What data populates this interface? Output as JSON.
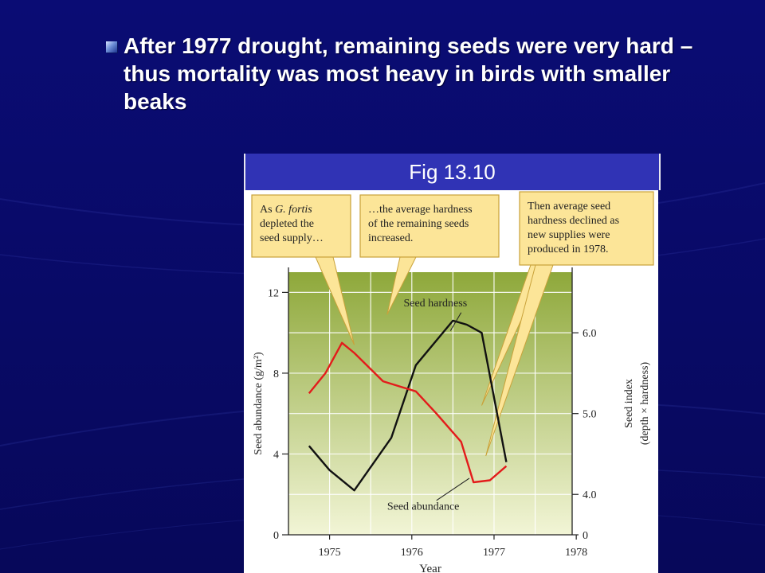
{
  "slide": {
    "bullet_text": "After 1977 drought,  remaining seeds were very hard – thus mortality was most heavy in birds with smaller beaks",
    "figure_title": "Fig 13.10"
  },
  "colors": {
    "background": "#0b0c6e",
    "figure_title_bar": "#3033b5",
    "callout_fill": "#fce598",
    "callout_border": "#c9a23a",
    "plot_fill_top": "#8ea83a",
    "plot_fill_bottom": "#f2f5d6",
    "seed_abundance": "#e31b1b",
    "seed_hardness": "#111111"
  },
  "callouts": [
    {
      "lines": [
        "As G. fortis",
        "depleted the",
        "seed supply…"
      ]
    },
    {
      "lines": [
        "…the average hardness",
        "of the remaining seeds",
        "increased."
      ]
    },
    {
      "lines": [
        "Then average seed",
        "hardness declined as",
        "new supplies were",
        "produced in 1978."
      ]
    }
  ],
  "chart_data": {
    "type": "line",
    "xlabel": "Year",
    "x_ticks": [
      "1975",
      "1976",
      "1977",
      "1978"
    ],
    "xlim": [
      1974.75,
      1978.2
    ],
    "y_left": {
      "label": "Seed abundance (g/m²)",
      "ticks": [
        "0",
        "4",
        "8",
        "12"
      ],
      "lim": [
        0,
        13
      ]
    },
    "y_right": {
      "label_lines": [
        "Seed index",
        "(depth × hardness)"
      ],
      "ticks": [
        {
          "label": "0",
          "left_value": 0
        },
        {
          "label": "4.0",
          "left_value": 2
        },
        {
          "label": "5.0",
          "left_value": 6
        },
        {
          "label": "6.0",
          "left_value": 10
        }
      ]
    },
    "grid": true,
    "series": [
      {
        "name": "Seed hardness",
        "axis": "right",
        "x": [
          1975.0,
          1975.25,
          1975.55,
          1976.0,
          1976.3,
          1976.75,
          1976.92,
          1977.1,
          1977.4
        ],
        "y": [
          4.6,
          4.3,
          4.05,
          4.7,
          5.6,
          6.15,
          6.1,
          6.0,
          4.4
        ]
      },
      {
        "name": "Seed abundance",
        "axis": "left",
        "x": [
          1975.0,
          1975.2,
          1975.4,
          1975.55,
          1975.9,
          1976.3,
          1976.55,
          1976.85,
          1977.0,
          1977.2,
          1977.4
        ],
        "y": [
          7.0,
          8.0,
          9.5,
          9.0,
          7.6,
          7.1,
          6.0,
          4.6,
          2.6,
          2.7,
          3.4
        ]
      }
    ],
    "series_labels": [
      "Seed hardness",
      "Seed abundance"
    ]
  }
}
